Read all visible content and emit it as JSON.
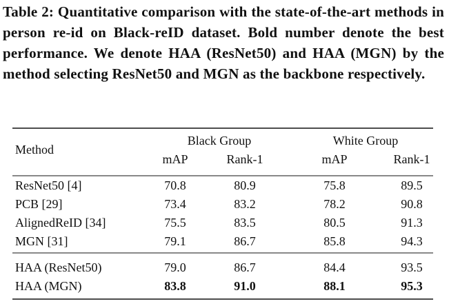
{
  "caption": "Table 2: Quantitative comparison with the state-of-the-art methods in person re-id on Black-reID dataset. Bold number denote the best performance. We denote HAA (ResNet50) and HAA (MGN) by the method selecting ResNet50 and MGN as the backbone respectively.",
  "table": {
    "header": {
      "method": "Method",
      "groups": [
        "Black Group",
        "White Group"
      ],
      "metrics": [
        "mAP",
        "Rank-1",
        "mAP",
        "Rank-1"
      ]
    },
    "sections": [
      {
        "rows": [
          {
            "method": "ResNet50 [4]",
            "values": [
              "70.8",
              "80.9",
              "75.8",
              "89.5"
            ],
            "bold": false
          },
          {
            "method": "PCB [29]",
            "values": [
              "73.4",
              "83.2",
              "78.2",
              "90.8"
            ],
            "bold": false
          },
          {
            "method": "AlignedReID [34]",
            "values": [
              "75.5",
              "83.5",
              "80.5",
              "91.3"
            ],
            "bold": false
          },
          {
            "method": "MGN [31]",
            "values": [
              "79.1",
              "86.7",
              "85.8",
              "94.3"
            ],
            "bold": false
          }
        ]
      },
      {
        "rows": [
          {
            "method": "HAA (ResNet50)",
            "values": [
              "79.0",
              "86.7",
              "84.4",
              "93.5"
            ],
            "bold": false
          },
          {
            "method": "HAA (MGN)",
            "values": [
              "83.8",
              "91.0",
              "88.1",
              "95.3"
            ],
            "bold": true
          }
        ]
      }
    ]
  }
}
